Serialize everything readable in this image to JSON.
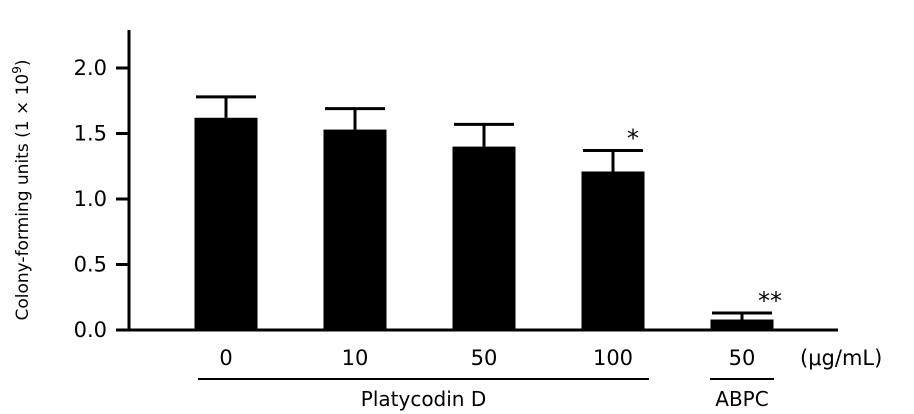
{
  "chart_data": {
    "type": "bar",
    "categories": [
      "0",
      "10",
      "50",
      "100",
      "50"
    ],
    "values": [
      1.62,
      1.53,
      1.4,
      1.21,
      0.08
    ],
    "error": [
      0.16,
      0.16,
      0.17,
      0.16,
      0.05
    ],
    "significance": [
      "",
      "",
      "",
      "*",
      "**"
    ],
    "ylabel": "Colony-forming units (1 × 10",
    "ylabel_exp": "9",
    "ylabel_close": ")",
    "ylim": [
      0,
      2.4
    ],
    "yticks": [
      0.0,
      0.5,
      1.0,
      1.5,
      2.0
    ],
    "ytick_labels": [
      "0.0",
      "0.5",
      "1.0",
      "1.5",
      "2.0"
    ],
    "unit_label": "(μg/mL)",
    "groups": [
      {
        "label": "Platycodin D",
        "indices": [
          0,
          1,
          2,
          3
        ]
      },
      {
        "label": "ABPC",
        "indices": [
          4
        ]
      }
    ],
    "bar_color": "#000000",
    "grid": false
  }
}
